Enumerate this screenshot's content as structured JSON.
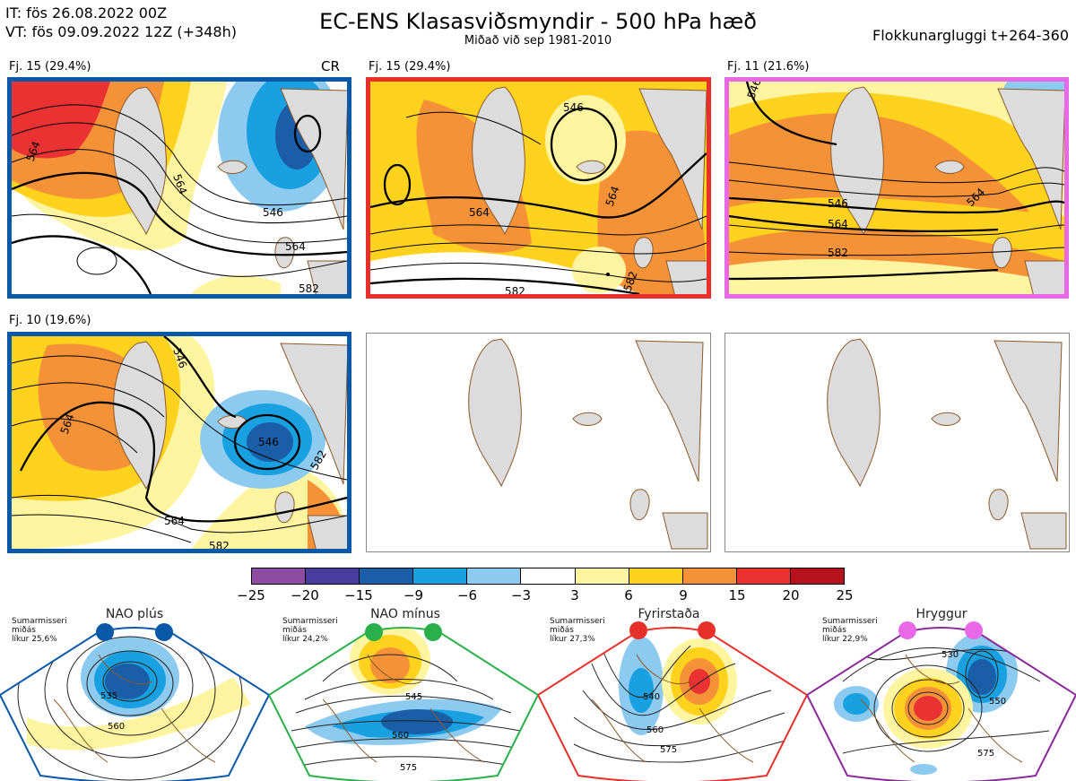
{
  "header": {
    "it": "IT: fös 26.08.2022 00Z",
    "vt": "VT: fös 09.09.2022 12Z  (+348h)",
    "title": "EC-ENS Klasasviðsmyndir - 500 hPa hæð",
    "subtitle": "Miðað við sep 1981-2010",
    "window": "Flokkunargluggi t+264-360"
  },
  "panels": [
    {
      "label": "Fj. 15 (29.4%)",
      "badge": "CR",
      "border": "#0a58a8",
      "contours": [
        "546",
        "564",
        "564",
        "564",
        "582"
      ]
    },
    {
      "label": "Fj. 15 (29.4%)",
      "badge": "",
      "border": "#e8302a",
      "contours": [
        "546",
        "564",
        "564",
        "582",
        "582"
      ]
    },
    {
      "label": "Fj. 11 (21.6%)",
      "badge": "",
      "border": "#e868e8",
      "contours": [
        "546",
        "546",
        "564",
        "564",
        "582"
      ]
    },
    {
      "label": "Fj. 10 (19.6%)",
      "badge": "",
      "border": "#0a58a8",
      "contours": [
        "546",
        "546",
        "564",
        "564",
        "582",
        "582"
      ]
    }
  ],
  "colorbar": {
    "colors": [
      "#8e4ca0",
      "#4a3c9e",
      "#1a5ea8",
      "#18a0e0",
      "#8ccaf0",
      "#ffffff",
      "#fff5a0",
      "#ffd21e",
      "#f59238",
      "#eb3232",
      "#b4121c"
    ],
    "ticks": [
      "−25",
      "−20",
      "−15",
      "−9",
      "−6",
      "−3",
      "3",
      "6",
      "9",
      "15",
      "20",
      "25"
    ]
  },
  "regimes": [
    {
      "name": "NAO plús",
      "info": [
        "Sumarmisseri",
        "miðás",
        "líkur 25,6%"
      ],
      "dot": "#0a58a8",
      "border": "#0a58a8",
      "contours": [
        "535",
        "560"
      ]
    },
    {
      "name": "NAO mínus",
      "info": [
        "Sumarmisseri",
        "miðás",
        "líkur 24,2%"
      ],
      "dot": "#2ab04a",
      "border": "#2ab04a",
      "contours": [
        "545",
        "560",
        "575"
      ]
    },
    {
      "name": "Fyrirstaða",
      "info": [
        "Sumarmisseri",
        "miðás",
        "líkur 27,3%"
      ],
      "dot": "#e8302a",
      "border": "#e8302a",
      "contours": [
        "540",
        "560",
        "575"
      ]
    },
    {
      "name": "Hryggur",
      "info": [
        "Sumarmisseri",
        "miðás",
        "líkur 22,9%"
      ],
      "dot": "#e868e8",
      "border": "#8a2a9a",
      "contours": [
        "530",
        "550",
        "575"
      ]
    }
  ]
}
